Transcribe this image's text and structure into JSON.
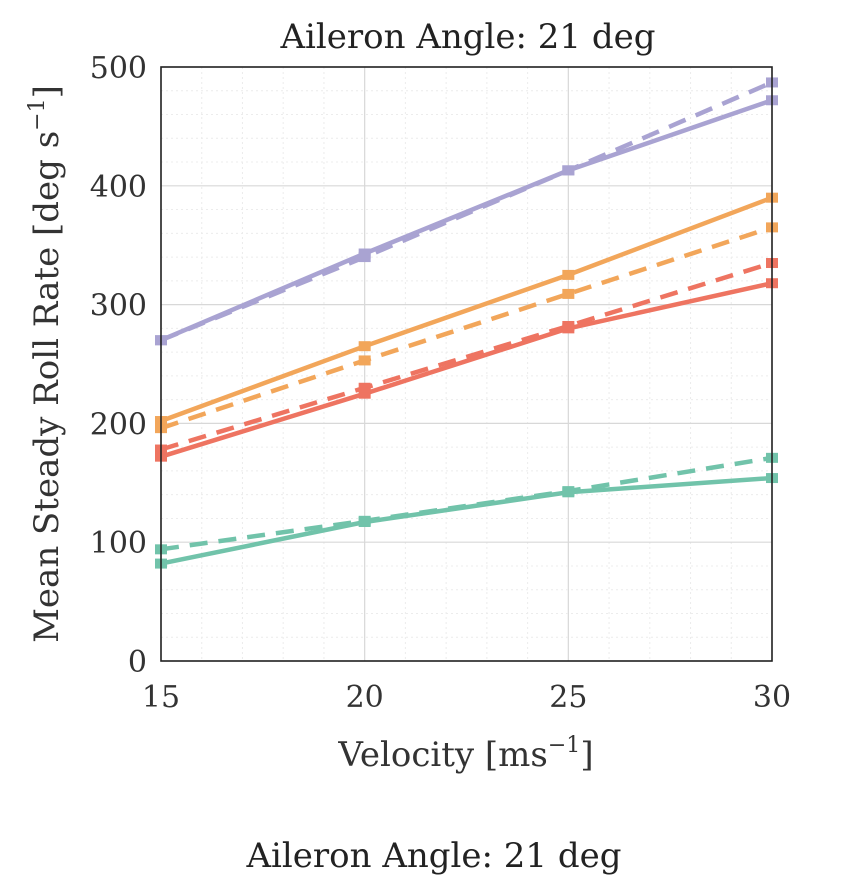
{
  "chart_data": {
    "type": "line",
    "title": "Aileron Angle: 21 deg",
    "xlabel": "Velocity [ms",
    "xlabel_sup": "−1",
    "xlabel_end": "]",
    "ylabel": "Mean Steady Roll Rate [deg s",
    "ylabel_sup": "−1",
    "ylabel_end": "]",
    "x": [
      15,
      20,
      25,
      30
    ],
    "xlim": [
      15,
      30
    ],
    "ylim": [
      0,
      500
    ],
    "xticks": [
      "15",
      "20",
      "25",
      "30"
    ],
    "yticks": [
      "0",
      "100",
      "200",
      "300",
      "400",
      "500"
    ],
    "grid": true,
    "series": [
      {
        "color": "#a9a3d2",
        "style": "solid",
        "values": [
          270,
          343,
          413,
          472
        ]
      },
      {
        "color": "#a9a3d2",
        "style": "dashed",
        "values": [
          270,
          340,
          413,
          487
        ]
      },
      {
        "color": "#f2a65a",
        "style": "solid",
        "values": [
          202,
          265,
          325,
          390
        ]
      },
      {
        "color": "#f2a65a",
        "style": "dashed",
        "values": [
          196,
          253,
          309,
          365
        ]
      },
      {
        "color": "#ee7461",
        "style": "solid",
        "values": [
          172,
          225,
          280,
          318
        ]
      },
      {
        "color": "#ee7461",
        "style": "dashed",
        "values": [
          178,
          230,
          282,
          335
        ]
      },
      {
        "color": "#71c3aa",
        "style": "solid",
        "values": [
          82,
          117,
          142,
          154
        ]
      },
      {
        "color": "#71c3aa",
        "style": "dashed",
        "values": [
          94,
          118,
          143,
          171
        ]
      }
    ]
  },
  "next_figure_title": "Aileron Angle: 21 deg"
}
